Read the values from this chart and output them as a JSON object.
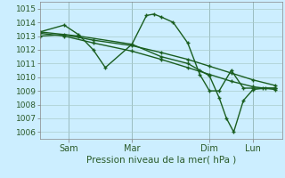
{
  "xlabel": "Pression niveau de la mer( hPa )",
  "bg_color": "#cceeff",
  "grid_color": "#aacccc",
  "line_color": "#1a5e20",
  "ylim": [
    1005.5,
    1015.5
  ],
  "yticks": [
    1006,
    1007,
    1008,
    1009,
    1010,
    1011,
    1012,
    1013,
    1014,
    1015
  ],
  "xtick_labels": [
    "Sam",
    "Mar",
    "Dim",
    "Lun"
  ],
  "xtick_positions": [
    0.12,
    0.38,
    0.7,
    0.88
  ],
  "xlim": [
    0.0,
    1.0
  ],
  "series": [
    {
      "x": [
        0.0,
        0.1,
        0.16,
        0.22,
        0.27,
        0.38,
        0.44,
        0.47,
        0.5,
        0.55,
        0.61,
        0.66,
        0.7,
        0.74,
        0.79,
        0.84,
        0.88,
        0.92,
        0.97
      ],
      "y": [
        1013.3,
        1013.8,
        1013.1,
        1012.0,
        1010.7,
        1012.4,
        1014.5,
        1014.6,
        1014.4,
        1014.0,
        1012.5,
        1010.2,
        1009.0,
        1009.0,
        1010.5,
        1009.2,
        1009.2,
        1009.2,
        1009.2
      ]
    },
    {
      "x": [
        0.0,
        0.1,
        0.22,
        0.38,
        0.5,
        0.61,
        0.7,
        0.79,
        0.88,
        0.97
      ],
      "y": [
        1013.0,
        1013.1,
        1012.7,
        1012.3,
        1011.8,
        1011.3,
        1010.8,
        1010.3,
        1009.8,
        1009.4
      ]
    },
    {
      "x": [
        0.0,
        0.1,
        0.22,
        0.38,
        0.5,
        0.61,
        0.7,
        0.79,
        0.88,
        0.97
      ],
      "y": [
        1013.2,
        1013.0,
        1012.5,
        1011.9,
        1011.3,
        1010.7,
        1010.2,
        1009.7,
        1009.3,
        1009.1
      ]
    },
    {
      "x": [
        0.0,
        0.16,
        0.38,
        0.5,
        0.61,
        0.66,
        0.7,
        0.74,
        0.77,
        0.8,
        0.84,
        0.88,
        0.93,
        0.97
      ],
      "y": [
        1013.3,
        1013.0,
        1012.4,
        1011.5,
        1011.0,
        1010.5,
        1010.1,
        1008.5,
        1007.0,
        1006.0,
        1008.3,
        1009.1,
        1009.2,
        1009.2
      ]
    }
  ]
}
